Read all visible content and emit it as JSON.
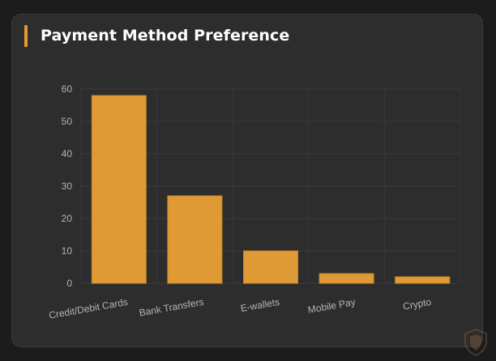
{
  "card": {
    "title": "Payment Method Preference",
    "accent_color": "#e09a35",
    "background_color": "#2d2d2d"
  },
  "chart_data": {
    "type": "bar",
    "title": "Payment Method Preference",
    "categories": [
      "Credit/Debit Cards",
      "Bank Transfers",
      "E-wallets",
      "Mobile Pay",
      "Crypto"
    ],
    "values": [
      58,
      27,
      10,
      3,
      2
    ],
    "ylim": [
      0,
      60
    ],
    "yticks": [
      0,
      10,
      20,
      30,
      40,
      50,
      60
    ],
    "xlabel": "",
    "ylabel": "",
    "grid": true,
    "legend": "none",
    "bar_color": "#e09a35"
  },
  "watermark": {
    "icon": "shield-logo-icon"
  }
}
